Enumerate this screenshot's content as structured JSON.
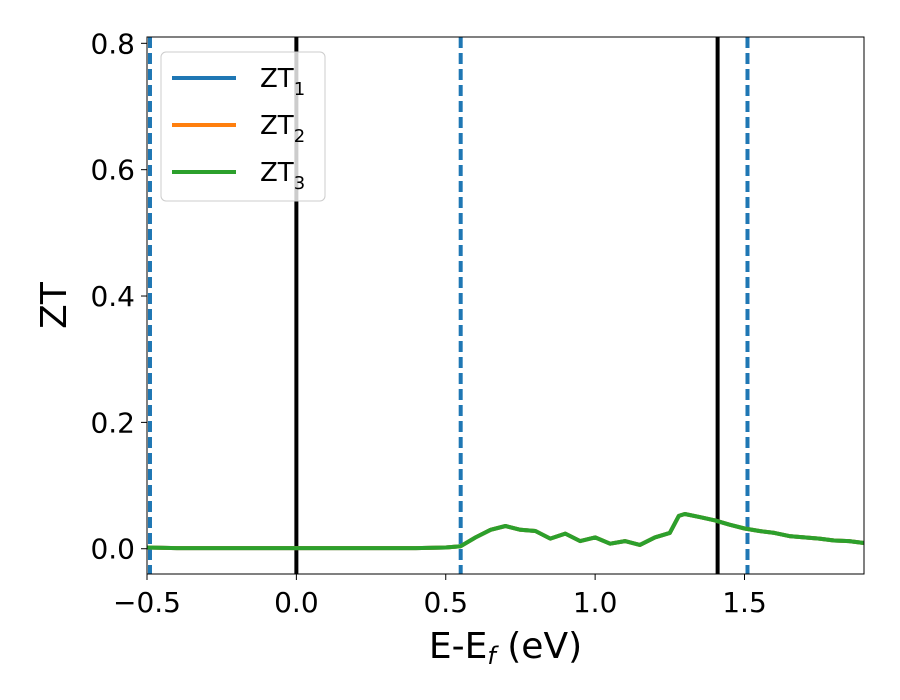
{
  "chart_data": {
    "type": "line",
    "title": "",
    "xlabel": "E-E",
    "xlabel_sub": "f",
    "xlabel_unit": " (eV)",
    "ylabel": "ZT",
    "xlim": [
      -0.5,
      1.9
    ],
    "ylim": [
      -0.04,
      0.81
    ],
    "xticks": [
      -0.5,
      0.0,
      0.5,
      1.0,
      1.5
    ],
    "xtick_labels": [
      "−0.5",
      "0.0",
      "0.5",
      "1.0",
      "1.5"
    ],
    "yticks": [
      0.0,
      0.2,
      0.4,
      0.6,
      0.8
    ],
    "ytick_labels": [
      "0.0",
      "0.2",
      "0.4",
      "0.6",
      "0.8"
    ],
    "grid": false,
    "legend_position": "top-left",
    "series": [
      {
        "name": "ZT",
        "subscript": "1",
        "color": "#1f77b4",
        "x": [
          -0.5,
          -0.4,
          -0.3,
          -0.2,
          -0.1,
          0.0,
          0.1,
          0.2,
          0.3,
          0.4,
          0.5,
          0.55,
          0.6,
          0.65,
          0.7,
          0.75,
          0.8,
          0.85,
          0.9,
          0.95,
          1.0,
          1.05,
          1.1,
          1.15,
          1.2,
          1.25,
          1.28,
          1.3,
          1.35,
          1.4,
          1.45,
          1.5,
          1.55,
          1.6,
          1.65,
          1.7,
          1.75,
          1.8,
          1.85,
          1.9
        ],
        "y": [
          0.002,
          0.001,
          0.001,
          0.001,
          0.001,
          0.001,
          0.001,
          0.001,
          0.001,
          0.001,
          0.002,
          0.004,
          0.018,
          0.03,
          0.036,
          0.03,
          0.028,
          0.016,
          0.024,
          0.012,
          0.018,
          0.008,
          0.012,
          0.006,
          0.018,
          0.025,
          0.052,
          0.055,
          0.05,
          0.045,
          0.038,
          0.032,
          0.028,
          0.025,
          0.02,
          0.018,
          0.016,
          0.013,
          0.012,
          0.009
        ]
      },
      {
        "name": "ZT",
        "subscript": "2",
        "color": "#ff7f0e",
        "x": [
          -0.5,
          -0.4,
          -0.3,
          -0.2,
          -0.1,
          0.0,
          0.1,
          0.2,
          0.3,
          0.4,
          0.5,
          0.55,
          0.6,
          0.65,
          0.7,
          0.75,
          0.8,
          0.85,
          0.9,
          0.95,
          1.0,
          1.05,
          1.1,
          1.15,
          1.2,
          1.25,
          1.28,
          1.3,
          1.35,
          1.4,
          1.45,
          1.5,
          1.55,
          1.6,
          1.65,
          1.7,
          1.75,
          1.8,
          1.85,
          1.9
        ],
        "y": [
          0.002,
          0.001,
          0.001,
          0.001,
          0.001,
          0.001,
          0.001,
          0.001,
          0.001,
          0.001,
          0.002,
          0.004,
          0.018,
          0.03,
          0.036,
          0.03,
          0.028,
          0.016,
          0.024,
          0.012,
          0.018,
          0.008,
          0.012,
          0.006,
          0.018,
          0.025,
          0.052,
          0.055,
          0.05,
          0.045,
          0.038,
          0.032,
          0.028,
          0.025,
          0.02,
          0.018,
          0.016,
          0.013,
          0.012,
          0.009
        ]
      },
      {
        "name": "ZT",
        "subscript": "3",
        "color": "#2ca02c",
        "x": [
          -0.5,
          -0.4,
          -0.3,
          -0.2,
          -0.1,
          0.0,
          0.1,
          0.2,
          0.3,
          0.4,
          0.5,
          0.55,
          0.6,
          0.65,
          0.7,
          0.75,
          0.8,
          0.85,
          0.9,
          0.95,
          1.0,
          1.05,
          1.1,
          1.15,
          1.2,
          1.25,
          1.28,
          1.3,
          1.35,
          1.4,
          1.45,
          1.5,
          1.55,
          1.6,
          1.65,
          1.7,
          1.75,
          1.8,
          1.85,
          1.9
        ],
        "y": [
          0.002,
          0.001,
          0.001,
          0.001,
          0.001,
          0.001,
          0.001,
          0.001,
          0.001,
          0.001,
          0.002,
          0.004,
          0.018,
          0.03,
          0.036,
          0.03,
          0.028,
          0.016,
          0.024,
          0.012,
          0.018,
          0.008,
          0.012,
          0.006,
          0.018,
          0.025,
          0.052,
          0.055,
          0.05,
          0.045,
          0.038,
          0.032,
          0.028,
          0.025,
          0.02,
          0.018,
          0.016,
          0.013,
          0.012,
          0.009
        ]
      }
    ],
    "vertical_lines": [
      {
        "x": -0.49,
        "style": "dashed",
        "color": "#1f77b4"
      },
      {
        "x": 0.0,
        "style": "solid",
        "color": "#000000"
      },
      {
        "x": 0.55,
        "style": "dashed",
        "color": "#1f77b4"
      },
      {
        "x": 1.41,
        "style": "solid",
        "color": "#000000"
      },
      {
        "x": 1.51,
        "style": "dashed",
        "color": "#1f77b4"
      }
    ]
  }
}
